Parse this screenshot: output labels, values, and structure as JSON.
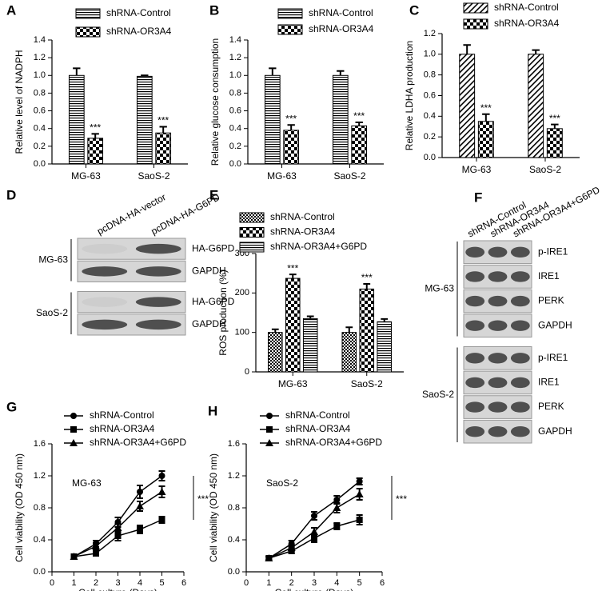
{
  "chart_data": [
    {
      "panel": "A",
      "type": "bar",
      "color": "#000000",
      "y_label": "Relative level of NADPH",
      "categories": [
        "MG-63",
        "SaoS-2"
      ],
      "series": [
        {
          "name": "shRNA-Control",
          "pattern": "hstripes",
          "values": [
            1.0,
            0.99
          ],
          "errors": [
            0.08,
            0.01
          ]
        },
        {
          "name": "shRNA-OR3A4",
          "pattern": "checker",
          "values": [
            0.29,
            0.35
          ],
          "errors": [
            0.05,
            0.07
          ],
          "significance": [
            "***",
            "***"
          ]
        }
      ],
      "ylim": [
        0,
        1.4
      ],
      "yticks": [
        {
          "value": 0,
          "label": "0.0"
        },
        0.2,
        0.4,
        0.6,
        0.8,
        {
          "value": 1,
          "label": "1.0"
        },
        1.2,
        1.4
      ]
    },
    {
      "panel": "B",
      "type": "bar",
      "color": "#000000",
      "y_label": "Relative glucose consumption",
      "categories": [
        "MG-63",
        "SaoS-2"
      ],
      "series": [
        {
          "name": "shRNA-Control",
          "pattern": "hstripes",
          "values": [
            1.0,
            1.0
          ],
          "errors": [
            0.08,
            0.05
          ]
        },
        {
          "name": "shRNA-OR3A4",
          "pattern": "checker",
          "values": [
            0.38,
            0.43
          ],
          "errors": [
            0.06,
            0.04
          ],
          "significance": [
            "***",
            "***"
          ]
        }
      ],
      "ylim": [
        0,
        1.4
      ],
      "yticks": [
        {
          "value": 0,
          "label": "0.0"
        },
        0.2,
        0.4,
        0.6,
        0.8,
        {
          "value": 1,
          "label": "1.0"
        },
        1.2,
        1.4
      ]
    },
    {
      "panel": "C",
      "type": "bar",
      "color": "#000000",
      "y_label": "Relative LDHA production",
      "categories": [
        "MG-63",
        "SaoS-2"
      ],
      "series": [
        {
          "name": "shRNA-Control",
          "pattern": "diag",
          "values": [
            1.0,
            1.0
          ],
          "errors": [
            0.09,
            0.04
          ]
        },
        {
          "name": "shRNA-OR3A4",
          "pattern": "checker",
          "values": [
            0.35,
            0.28
          ],
          "errors": [
            0.07,
            0.04
          ],
          "significance": [
            "***",
            "***"
          ]
        }
      ],
      "ylim": [
        0,
        1.2
      ],
      "yticks": [
        {
          "value": 0,
          "label": "0.0"
        },
        0.2,
        0.4,
        0.6,
        0.8,
        {
          "value": 1,
          "label": "1.0"
        },
        1.2
      ]
    },
    {
      "panel": "D",
      "type": "blot",
      "lanes": [
        "pcDNA-HA-vector",
        "pcDNA-HA-G6PD"
      ],
      "groups": [
        {
          "name": "MG-63",
          "rows": [
            "HA-G6PD",
            "GAPDH"
          ]
        },
        {
          "name": "SaoS-2",
          "rows": [
            "HA-G6PD",
            "GAPDH"
          ]
        }
      ]
    },
    {
      "panel": "E",
      "type": "bar",
      "color": "#000000",
      "y_label": "ROS production (%)",
      "categories": [
        "MG-63",
        "SaoS-2"
      ],
      "series": [
        {
          "name": "shRNA-Control",
          "pattern": "fine",
          "values": [
            100,
            100
          ],
          "errors": [
            8,
            13
          ]
        },
        {
          "name": "shRNA-OR3A4",
          "pattern": "checker",
          "values": [
            237,
            210
          ],
          "errors": [
            10,
            13
          ],
          "significance": [
            "***",
            "***"
          ]
        },
        {
          "name": "shRNA-OR3A4+G6PD",
          "pattern": "hstripes",
          "values": [
            135,
            127
          ],
          "errors": [
            6,
            7
          ]
        }
      ],
      "ylim": [
        0,
        300
      ],
      "yticks": [
        0,
        100,
        200,
        300
      ]
    },
    {
      "panel": "F",
      "type": "blot",
      "lanes": [
        "shRNA-Control",
        "shRNA-OR3A4",
        "shRNA-OR3A4+G6PD"
      ],
      "groups": [
        {
          "name": "MG-63",
          "rows": [
            "p-IRE1",
            "IRE1",
            "PERK",
            "GAPDH"
          ]
        },
        {
          "name": "SaoS-2",
          "rows": [
            "p-IRE1",
            "IRE1",
            "PERK",
            "GAPDH"
          ]
        }
      ]
    },
    {
      "panel": "G",
      "type": "line",
      "color": "#000000",
      "x_label": "Cell culture (Days)",
      "y_label": "Cell viability (OD 450 nm)",
      "inner_label": "MG-63",
      "significance": "***",
      "x": [
        1,
        2,
        3,
        4,
        5
      ],
      "xlim": [
        0,
        6
      ],
      "xticks": [
        0,
        1,
        2,
        3,
        4,
        5,
        6
      ],
      "ylim": [
        0,
        1.6
      ],
      "yticks": [
        {
          "value": 0,
          "label": "0.0"
        },
        0.4,
        0.8,
        1.2,
        1.6
      ],
      "series": [
        {
          "name": "shRNA-Control",
          "marker": "circle",
          "values": [
            0.19,
            0.35,
            0.62,
            1.0,
            1.2
          ],
          "errors": [
            0.02,
            0.04,
            0.06,
            0.08,
            0.06
          ]
        },
        {
          "name": "shRNA-OR3A4",
          "marker": "square",
          "values": [
            0.19,
            0.23,
            0.45,
            0.53,
            0.65
          ],
          "errors": [
            0.02,
            0.03,
            0.06,
            0.05,
            0.04
          ]
        },
        {
          "name": "shRNA-OR3A4+G6PD",
          "marker": "triangle",
          "values": [
            0.19,
            0.32,
            0.55,
            0.82,
            1.0
          ],
          "errors": [
            0.02,
            0.04,
            0.05,
            0.06,
            0.07
          ]
        }
      ]
    },
    {
      "panel": "H",
      "type": "line",
      "color": "#000000",
      "x_label": "Cell culture (Days)",
      "y_label": "Cell viability (OD 450 nm)",
      "inner_label": "SaoS-2",
      "significance": "***",
      "x": [
        1,
        2,
        3,
        4,
        5
      ],
      "xlim": [
        0,
        6
      ],
      "xticks": [
        0,
        1,
        2,
        3,
        4,
        5,
        6
      ],
      "ylim": [
        0,
        1.6
      ],
      "yticks": [
        {
          "value": 0,
          "label": "0.0"
        },
        0.4,
        0.8,
        1.2,
        1.6
      ],
      "series": [
        {
          "name": "shRNA-Control",
          "marker": "circle",
          "values": [
            0.17,
            0.35,
            0.7,
            0.9,
            1.13
          ],
          "errors": [
            0.02,
            0.04,
            0.05,
            0.05,
            0.04
          ]
        },
        {
          "name": "shRNA-OR3A4",
          "marker": "square",
          "values": [
            0.17,
            0.26,
            0.42,
            0.57,
            0.65
          ],
          "errors": [
            0.02,
            0.03,
            0.05,
            0.04,
            0.06
          ]
        },
        {
          "name": "shRNA-OR3A4+G6PD",
          "marker": "triangle",
          "values": [
            0.17,
            0.3,
            0.5,
            0.8,
            0.97
          ],
          "errors": [
            0.02,
            0.04,
            0.05,
            0.06,
            0.07
          ]
        }
      ]
    }
  ]
}
